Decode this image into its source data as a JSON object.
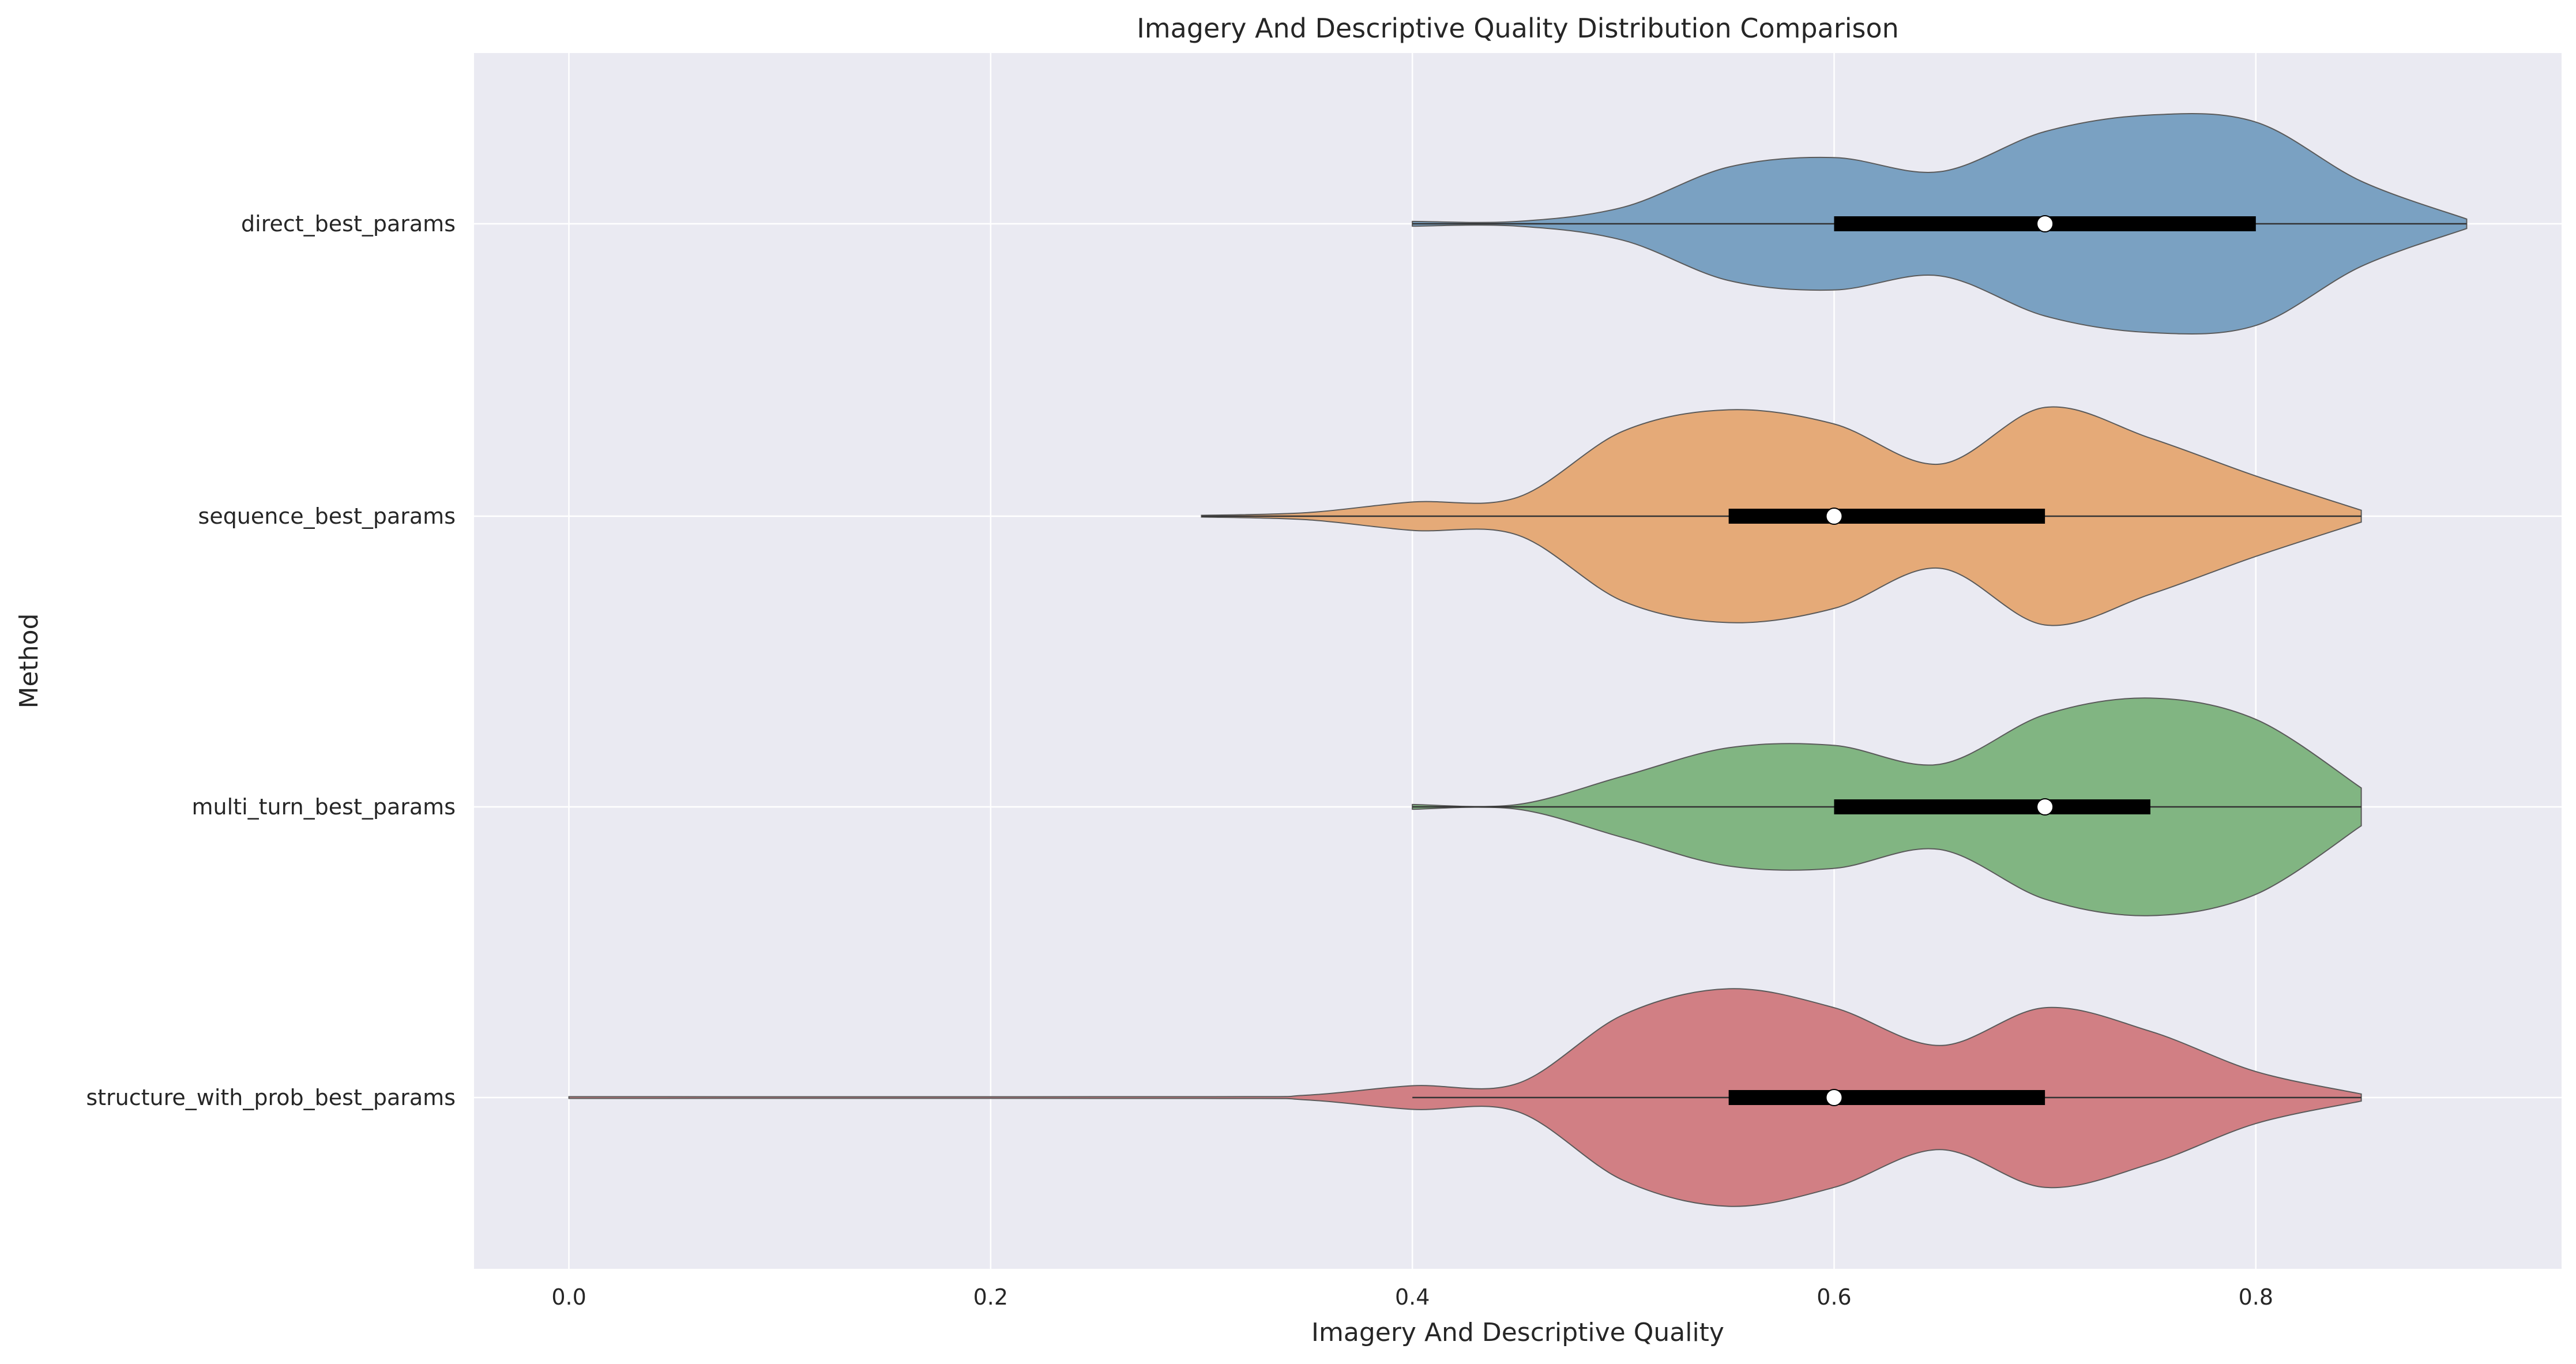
{
  "chart_data": {
    "type": "violin",
    "orientation": "horizontal",
    "title": "Imagery And Descriptive Quality Distribution Comparison",
    "xlabel": "Imagery And Descriptive Quality",
    "ylabel": "Method",
    "xlim": [
      -0.045,
      0.945
    ],
    "x_ticks": [
      0.0,
      0.2,
      0.4,
      0.6,
      0.8
    ],
    "x_tick_labels": [
      "0.0",
      "0.2",
      "0.4",
      "0.6",
      "0.8"
    ],
    "grid": true,
    "background": "#EAEAF2",
    "series": [
      {
        "name": "direct_best_params",
        "color": "#7AA1C2",
        "min": 0.4,
        "q1": 0.6,
        "median": 0.7,
        "q3": 0.8,
        "max": 0.9,
        "density": [
          [
            0.4,
            0.02
          ],
          [
            0.45,
            0.02
          ],
          [
            0.5,
            0.14
          ],
          [
            0.55,
            0.48
          ],
          [
            0.6,
            0.56
          ],
          [
            0.65,
            0.44
          ],
          [
            0.7,
            0.78
          ],
          [
            0.75,
            0.92
          ],
          [
            0.8,
            0.86
          ],
          [
            0.85,
            0.36
          ],
          [
            0.9,
            0.04
          ]
        ]
      },
      {
        "name": "sequence_best_params",
        "color": "#E5AA78",
        "min": 0.3,
        "q1": 0.55,
        "median": 0.6,
        "q3": 0.7,
        "max": 0.85,
        "density": [
          [
            0.3,
            0.0
          ],
          [
            0.35,
            0.03
          ],
          [
            0.4,
            0.12
          ],
          [
            0.45,
            0.16
          ],
          [
            0.5,
            0.72
          ],
          [
            0.55,
            0.9
          ],
          [
            0.6,
            0.78
          ],
          [
            0.65,
            0.44
          ],
          [
            0.7,
            0.92
          ],
          [
            0.75,
            0.66
          ],
          [
            0.8,
            0.34
          ],
          [
            0.85,
            0.05
          ]
        ]
      },
      {
        "name": "multi_turn_best_params",
        "color": "#81B582",
        "min": 0.4,
        "q1": 0.6,
        "median": 0.7,
        "q3": 0.75,
        "max": 0.85,
        "density": [
          [
            0.4,
            0.02
          ],
          [
            0.45,
            0.02
          ],
          [
            0.5,
            0.26
          ],
          [
            0.55,
            0.5
          ],
          [
            0.6,
            0.52
          ],
          [
            0.65,
            0.36
          ],
          [
            0.7,
            0.78
          ],
          [
            0.75,
            0.92
          ],
          [
            0.8,
            0.74
          ],
          [
            0.85,
            0.16
          ]
        ]
      },
      {
        "name": "structure_with_prob_best_params",
        "color": "#D17F84",
        "min": 0.4,
        "q1": 0.55,
        "median": 0.6,
        "q3": 0.7,
        "max": 0.85,
        "density": [
          [
            0.0,
            0.0
          ],
          [
            0.3,
            0.0
          ],
          [
            0.35,
            0.02
          ],
          [
            0.4,
            0.1
          ],
          [
            0.45,
            0.12
          ],
          [
            0.5,
            0.7
          ],
          [
            0.55,
            0.92
          ],
          [
            0.6,
            0.76
          ],
          [
            0.65,
            0.44
          ],
          [
            0.7,
            0.76
          ],
          [
            0.75,
            0.56
          ],
          [
            0.8,
            0.22
          ],
          [
            0.85,
            0.03
          ]
        ]
      }
    ]
  }
}
